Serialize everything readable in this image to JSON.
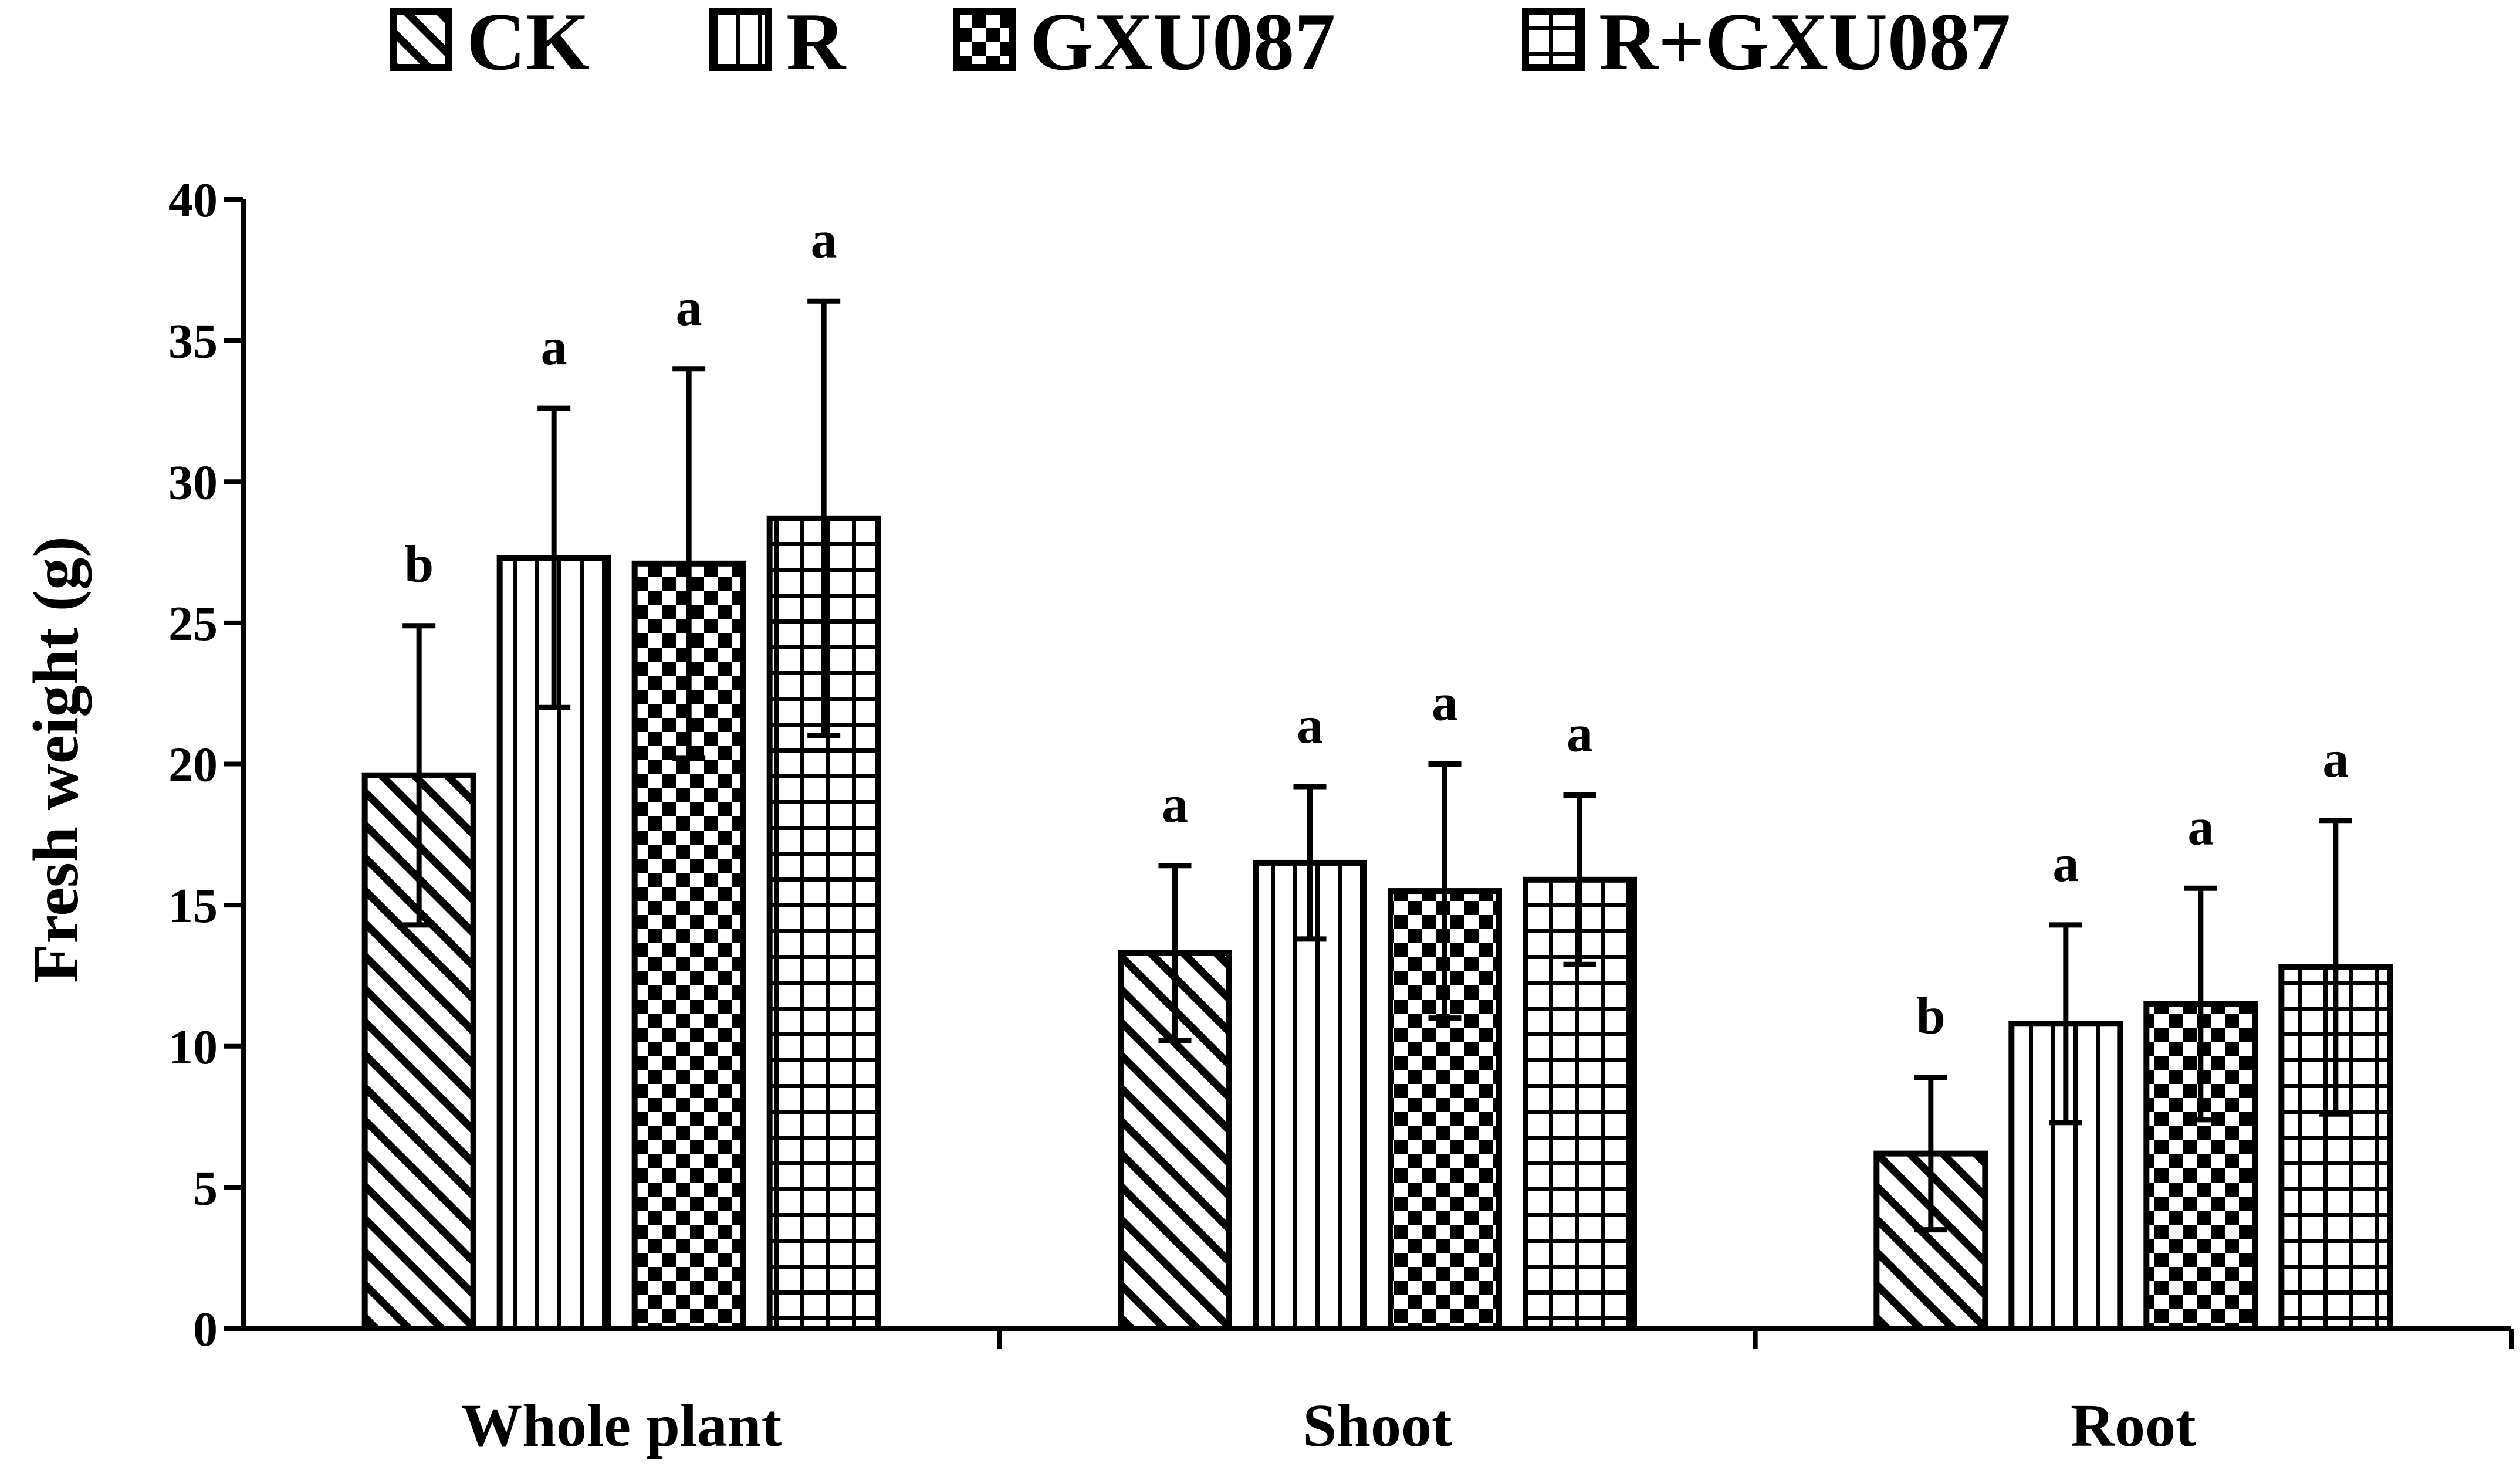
{
  "chart_data": {
    "type": "bar",
    "title": "",
    "xlabel": "",
    "ylabel": "Fresh weight (g)",
    "ylim": [
      0,
      40
    ],
    "yticks": [
      0,
      5,
      10,
      15,
      20,
      25,
      30,
      35,
      40
    ],
    "grid": false,
    "legend_position": "top",
    "categories": [
      "Whole plant",
      "Shoot",
      "Root"
    ],
    "series": [
      {
        "name": "CK",
        "pattern": "diagonal-hatch",
        "values": [
          19.6,
          13.3,
          6.2
        ],
        "errors": [
          5.3,
          3.1,
          2.7
        ],
        "significance": [
          "b",
          "a",
          "b"
        ]
      },
      {
        "name": "R",
        "pattern": "vertical-lines",
        "values": [
          27.3,
          16.5,
          10.8
        ],
        "errors": [
          5.3,
          2.7,
          3.5
        ],
        "significance": [
          "a",
          "a",
          "a"
        ]
      },
      {
        "name": "GXU087",
        "pattern": "checkerboard",
        "values": [
          27.1,
          15.5,
          11.5
        ],
        "errors": [
          6.9,
          4.5,
          4.1
        ],
        "significance": [
          "a",
          "a",
          "a"
        ]
      },
      {
        "name": "R+GXU087",
        "pattern": "grid",
        "values": [
          28.7,
          15.9,
          12.8
        ],
        "errors": [
          7.7,
          3.0,
          5.2
        ],
        "significance": [
          "a",
          "a",
          "a"
        ]
      }
    ]
  }
}
